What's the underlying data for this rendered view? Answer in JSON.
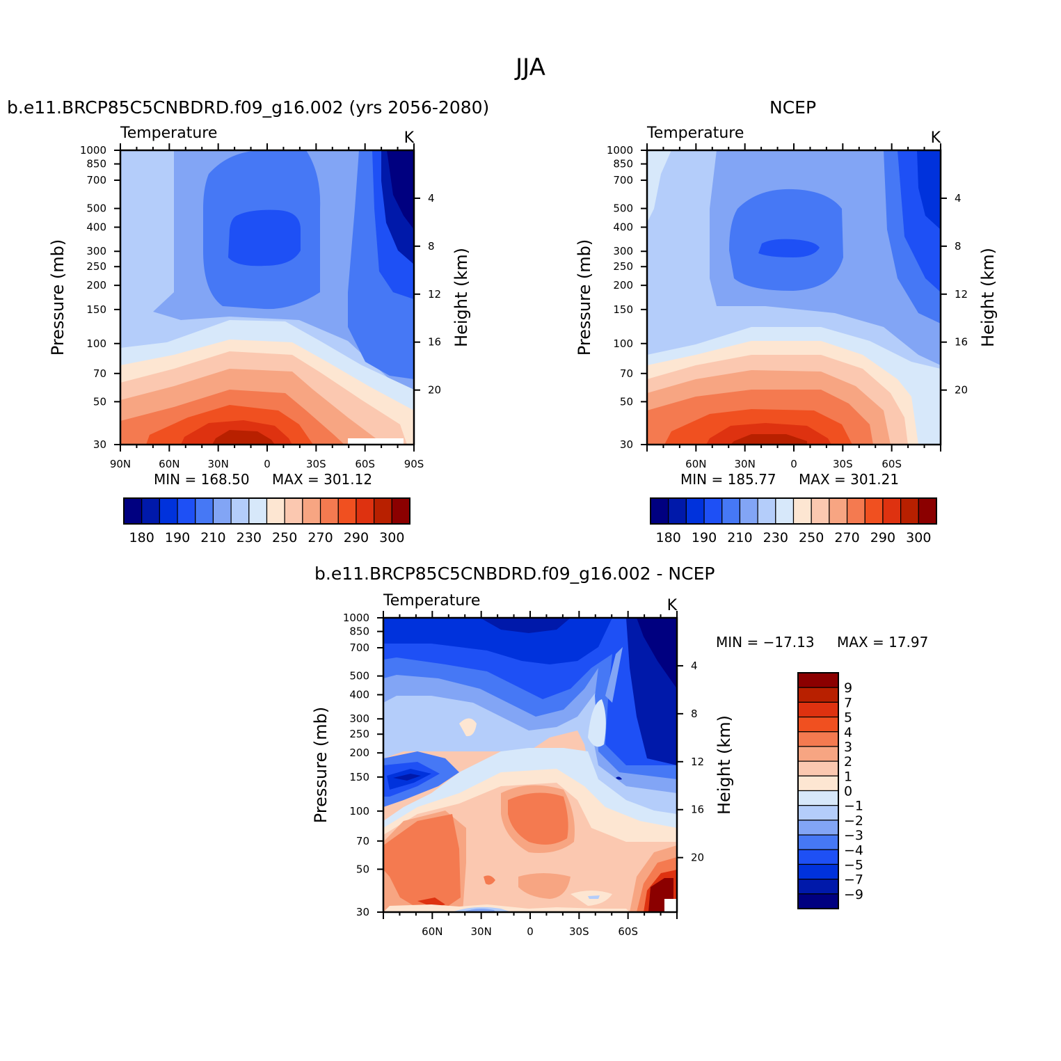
{
  "figure": {
    "title": "JJA",
    "colors": {
      "abs_levels": [
        "#000080",
        "#0019aa",
        "#0032dc",
        "#1e50f5",
        "#4678f5",
        "#82a5f5",
        "#b4cdfa",
        "#d7e8fa",
        "#fde6d2",
        "#fbc8b0",
        "#f7a582",
        "#f47a50",
        "#f05020",
        "#de3210",
        "#b82000",
        "#8b0000"
      ],
      "diff_levels": [
        "#000080",
        "#0019aa",
        "#0032dc",
        "#1e50f5",
        "#4678f5",
        "#82a5f5",
        "#b4cdfa",
        "#d7e8fa",
        "#fde6d2",
        "#fbc8b0",
        "#f7a582",
        "#f47a50",
        "#f05020",
        "#de3210",
        "#b82000",
        "#8b0000"
      ]
    }
  },
  "chart_data": [
    {
      "type": "contour",
      "panel_title": "b.e11.BRCP85C5CNBDRD.f09_g16.002 (yrs 2056-2080)",
      "variable": "Temperature",
      "units": "K",
      "ylabel": "Pressure (mb)",
      "ylabel_right": "Height (km)",
      "y_ticks": [
        "30",
        "50",
        "70",
        "100",
        "150",
        "200",
        "250",
        "300",
        "400",
        "500",
        "700",
        "850",
        "1000"
      ],
      "y_tick_values": [
        30,
        50,
        70,
        100,
        150,
        200,
        250,
        300,
        400,
        500,
        700,
        850,
        1000
      ],
      "height_ticks": [
        "20",
        "16",
        "12",
        "8",
        "4"
      ],
      "height_tick_values": [
        20,
        16,
        12,
        8,
        4
      ],
      "x_ticks": [
        "90N",
        "60N",
        "30N",
        "0",
        "30S",
        "60S",
        "90S"
      ],
      "x_tick_values": [
        90,
        60,
        30,
        0,
        -30,
        -60,
        -90
      ],
      "xlim": [
        90,
        -90
      ],
      "ylim": [
        1000,
        30
      ],
      "y_scale": "log",
      "min_label": "MIN = 168.50",
      "max_label": "MAX = 301.12",
      "min": 168.5,
      "max": 301.12,
      "colorbar_labels": [
        "180",
        "190",
        "210",
        "230",
        "250",
        "270",
        "290",
        "300"
      ],
      "colorbar_levels": [
        180,
        185,
        190,
        200,
        210,
        220,
        230,
        240,
        250,
        260,
        270,
        280,
        290,
        295,
        300
      ]
    },
    {
      "type": "contour",
      "panel_title": "NCEP",
      "variable": "Temperature",
      "units": "K",
      "ylabel": "Pressure (mb)",
      "ylabel_right": "Height (km)",
      "y_ticks": [
        "30",
        "50",
        "70",
        "100",
        "150",
        "200",
        "250",
        "300",
        "400",
        "500",
        "700",
        "850",
        "1000"
      ],
      "y_tick_values": [
        30,
        50,
        70,
        100,
        150,
        200,
        250,
        300,
        400,
        500,
        700,
        850,
        1000
      ],
      "height_ticks": [
        "20",
        "16",
        "12",
        "8",
        "4"
      ],
      "height_tick_values": [
        20,
        16,
        12,
        8,
        4
      ],
      "x_ticks": [
        "60N",
        "30N",
        "0",
        "30S",
        "60S"
      ],
      "x_tick_values": [
        60,
        30,
        0,
        -30,
        -60
      ],
      "xlim": [
        90,
        -90
      ],
      "ylim": [
        1000,
        30
      ],
      "y_scale": "log",
      "min_label": "MIN = 185.77",
      "max_label": "MAX = 301.21",
      "min": 185.77,
      "max": 301.21,
      "colorbar_labels": [
        "180",
        "190",
        "210",
        "230",
        "250",
        "270",
        "290",
        "300"
      ],
      "colorbar_levels": [
        180,
        185,
        190,
        200,
        210,
        220,
        230,
        240,
        250,
        260,
        270,
        280,
        290,
        295,
        300
      ]
    },
    {
      "type": "contour",
      "panel_title": "b.e11.BRCP85C5CNBDRD.f09_g16.002 - NCEP",
      "variable": "Temperature",
      "units": "K",
      "ylabel": "Pressure (mb)",
      "ylabel_right": "Height (km)",
      "y_ticks": [
        "30",
        "50",
        "70",
        "100",
        "150",
        "200",
        "250",
        "300",
        "400",
        "500",
        "700",
        "850",
        "1000"
      ],
      "y_tick_values": [
        30,
        50,
        70,
        100,
        150,
        200,
        250,
        300,
        400,
        500,
        700,
        850,
        1000
      ],
      "height_ticks": [
        "20",
        "16",
        "12",
        "8",
        "4"
      ],
      "height_tick_values": [
        20,
        16,
        12,
        8,
        4
      ],
      "x_ticks": [
        "60N",
        "30N",
        "0",
        "30S",
        "60S"
      ],
      "x_tick_values": [
        60,
        30,
        0,
        -30,
        -60
      ],
      "xlim": [
        90,
        -90
      ],
      "ylim": [
        1000,
        30
      ],
      "y_scale": "log",
      "min_label": "MIN = -17.13",
      "max_label": "MAX = 17.97",
      "min": -17.13,
      "max": 17.97,
      "colorbar_labels": [
        "9",
        "7",
        "5",
        "4",
        "3",
        "2",
        "1",
        "0",
        "-1",
        "-2",
        "-3",
        "-4",
        "-5",
        "-7",
        "-9"
      ],
      "colorbar_levels": [
        9,
        7,
        5,
        4,
        3,
        2,
        1,
        0,
        -1,
        -2,
        -3,
        -4,
        -5,
        -7,
        -9
      ]
    }
  ]
}
